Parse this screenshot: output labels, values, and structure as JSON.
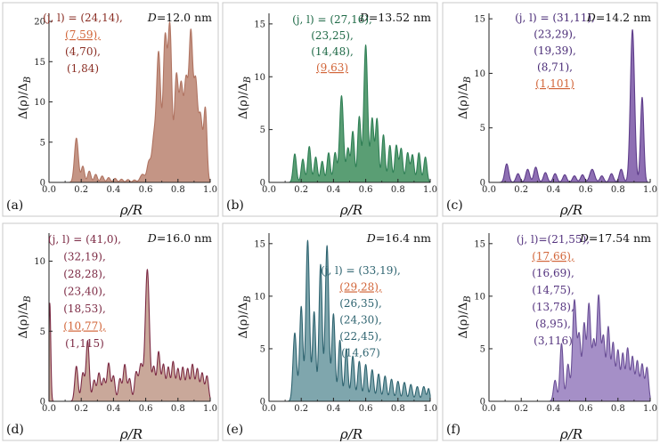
{
  "chart_data": [
    {
      "panel": "(a)",
      "type": "area",
      "D_label": "D",
      "D_value": "=12.0 nm",
      "color": "#b07462",
      "fill": "#c49585",
      "underline_color": "#d2663a",
      "ylabel": "Δ(ρ)/Δ_B",
      "xlabel": "ρ/R",
      "xlim": [
        0,
        1
      ],
      "ylim": [
        0,
        21
      ],
      "xticks": [
        "0.0",
        "0.2",
        "0.4",
        "0.6",
        "0.8",
        "1.0"
      ],
      "yticks": [
        "0",
        "5",
        "10",
        "15",
        "20"
      ],
      "ytick_values": [
        0,
        5,
        10,
        15,
        20
      ],
      "legend_lines": [
        "(j, l) = (24,14),",
        "(7,59),",
        "(4,70),",
        "(1,84)"
      ],
      "underlined_line": 1,
      "legend_color": "#8a2e24",
      "peaks": [
        [
          0.17,
          5.5,
          0.012
        ],
        [
          0.21,
          2.0,
          0.01
        ],
        [
          0.25,
          1.4,
          0.01
        ],
        [
          0.29,
          1.0,
          0.01
        ],
        [
          0.33,
          0.8,
          0.01
        ],
        [
          0.37,
          0.6,
          0.01
        ],
        [
          0.41,
          0.5,
          0.01
        ],
        [
          0.45,
          0.4,
          0.01
        ],
        [
          0.49,
          0.35,
          0.01
        ],
        [
          0.53,
          0.3,
          0.01
        ],
        [
          0.58,
          1.0,
          0.015
        ],
        [
          0.62,
          2.5,
          0.012
        ],
        [
          0.65,
          5.0,
          0.012
        ],
        [
          0.68,
          16.0,
          0.013
        ],
        [
          0.72,
          17.5,
          0.012
        ],
        [
          0.75,
          19.0,
          0.012
        ],
        [
          0.79,
          13.0,
          0.012
        ],
        [
          0.82,
          11.5,
          0.012
        ],
        [
          0.85,
          12.0,
          0.012
        ],
        [
          0.88,
          18.0,
          0.012
        ],
        [
          0.91,
          12.0,
          0.012
        ],
        [
          0.94,
          8.0,
          0.012
        ],
        [
          0.97,
          9.0,
          0.01
        ]
      ]
    },
    {
      "panel": "(b)",
      "type": "area",
      "D_label": "D",
      "D_value": "=13.52 nm",
      "color": "#2f7f55",
      "fill": "#5a9e74",
      "underline_color": "#d2663a",
      "ylabel": "Δ(ρ)/Δ_B",
      "xlabel": "ρ/R",
      "xlim": [
        0,
        1
      ],
      "ylim": [
        0,
        16
      ],
      "xticks": [
        "0.0",
        "0.2",
        "0.4",
        "0.6",
        "0.8",
        "1.0"
      ],
      "yticks": [
        "0",
        "5",
        "10",
        "15"
      ],
      "ytick_values": [
        0,
        5,
        10,
        15
      ],
      "legend_lines": [
        "(j, l) = (27,16),",
        "(23,25),",
        "(14,48),",
        "(9,63)"
      ],
      "underlined_line": 3,
      "legend_color": "#1f6a47",
      "peaks": [
        [
          0.16,
          2.7,
          0.01
        ],
        [
          0.21,
          2.2,
          0.01
        ],
        [
          0.25,
          3.4,
          0.01
        ],
        [
          0.29,
          2.4,
          0.01
        ],
        [
          0.33,
          2.0,
          0.01
        ],
        [
          0.37,
          2.8,
          0.01
        ],
        [
          0.41,
          2.8,
          0.01
        ],
        [
          0.45,
          8.2,
          0.012
        ],
        [
          0.49,
          3.2,
          0.01
        ],
        [
          0.52,
          4.8,
          0.01
        ],
        [
          0.56,
          6.2,
          0.01
        ],
        [
          0.6,
          13.0,
          0.012
        ],
        [
          0.64,
          6.0,
          0.01
        ],
        [
          0.67,
          6.0,
          0.01
        ],
        [
          0.71,
          4.5,
          0.01
        ],
        [
          0.75,
          3.5,
          0.01
        ],
        [
          0.79,
          3.5,
          0.01
        ],
        [
          0.82,
          3.2,
          0.01
        ],
        [
          0.86,
          2.8,
          0.01
        ],
        [
          0.89,
          2.6,
          0.01
        ],
        [
          0.93,
          2.8,
          0.01
        ],
        [
          0.97,
          2.4,
          0.01
        ]
      ]
    },
    {
      "panel": "(c)",
      "type": "area",
      "D_label": "D",
      "D_value": "=14.2 nm",
      "color": "#5e3d8a",
      "fill": "#8e6fb3",
      "underline_color": "#d2663a",
      "ylabel": "Δ(ρ)/Δ_B",
      "xlabel": "ρ/R",
      "xlim": [
        0,
        1
      ],
      "ylim": [
        0,
        15.5
      ],
      "xticks": [
        "0.0",
        "0.2",
        "0.4",
        "0.6",
        "0.8",
        "1.0"
      ],
      "yticks": [
        "0",
        "5",
        "10",
        "15"
      ],
      "ytick_values": [
        0,
        5,
        10,
        15
      ],
      "legend_lines": [
        "(j, l) = (31,11),",
        "(23,29),",
        "(19,39),",
        "(8,71),",
        "(1,101)"
      ],
      "underlined_line": 4,
      "legend_color": "#4a2c77",
      "peaks": [
        [
          0.11,
          1.7,
          0.012
        ],
        [
          0.18,
          0.8,
          0.012
        ],
        [
          0.24,
          1.2,
          0.012
        ],
        [
          0.29,
          1.4,
          0.012
        ],
        [
          0.35,
          0.9,
          0.012
        ],
        [
          0.41,
          0.8,
          0.012
        ],
        [
          0.47,
          0.7,
          0.012
        ],
        [
          0.53,
          0.6,
          0.012
        ],
        [
          0.58,
          0.7,
          0.012
        ],
        [
          0.64,
          1.2,
          0.015
        ],
        [
          0.7,
          0.6,
          0.012
        ],
        [
          0.76,
          0.8,
          0.012
        ],
        [
          0.82,
          1.2,
          0.012
        ],
        [
          0.89,
          14.0,
          0.013
        ],
        [
          0.95,
          7.8,
          0.01
        ]
      ]
    },
    {
      "panel": "(d)",
      "type": "area",
      "D_label": "D",
      "D_value": "=16.0 nm",
      "color": "#7c2a44",
      "fill": "#c9a89a",
      "underline_color": "#d2663a",
      "ylabel": "Δ(ρ)/Δ_B",
      "xlabel": "ρ/R",
      "xlim": [
        0,
        1
      ],
      "ylim": [
        0,
        12
      ],
      "xticks": [
        "0.0",
        "0.2",
        "0.4",
        "0.6",
        "0.8",
        "1.0"
      ],
      "yticks": [
        "0",
        "5",
        "10"
      ],
      "ytick_values": [
        0,
        5,
        10
      ],
      "legend_lines": [
        "(j, l) = (41,0),",
        "(32,19),",
        "(28,28),",
        "(23,40),",
        "(18,53),",
        "(10,77),",
        "(1,115)"
      ],
      "underlined_line": 5,
      "legend_color": "#7c2a44",
      "peaks": [
        [
          0.005,
          7.0,
          0.006
        ],
        [
          0.17,
          2.5,
          0.01
        ],
        [
          0.21,
          2.0,
          0.01
        ],
        [
          0.24,
          4.3,
          0.01
        ],
        [
          0.28,
          1.5,
          0.01
        ],
        [
          0.31,
          2.0,
          0.01
        ],
        [
          0.34,
          1.6,
          0.01
        ],
        [
          0.37,
          2.7,
          0.01
        ],
        [
          0.4,
          1.8,
          0.01
        ],
        [
          0.44,
          1.6,
          0.01
        ],
        [
          0.47,
          2.6,
          0.01
        ],
        [
          0.5,
          1.6,
          0.01
        ],
        [
          0.54,
          2.0,
          0.01
        ],
        [
          0.57,
          2.6,
          0.012
        ],
        [
          0.61,
          9.4,
          0.013
        ],
        [
          0.65,
          2.4,
          0.01
        ],
        [
          0.68,
          3.5,
          0.01
        ],
        [
          0.71,
          2.6,
          0.01
        ],
        [
          0.74,
          2.4,
          0.01
        ],
        [
          0.77,
          2.8,
          0.01
        ],
        [
          0.8,
          2.3,
          0.01
        ],
        [
          0.83,
          2.4,
          0.01
        ],
        [
          0.86,
          2.3,
          0.01
        ],
        [
          0.89,
          2.6,
          0.01
        ],
        [
          0.92,
          2.3,
          0.01
        ],
        [
          0.95,
          2.0,
          0.01
        ],
        [
          0.98,
          1.8,
          0.01
        ]
      ]
    },
    {
      "panel": "(e)",
      "type": "area",
      "D_label": "D",
      "D_value": "=16.4 nm",
      "color": "#2f6470",
      "fill": "#7fa6ad",
      "underline_color": "#d2663a",
      "ylabel": "Δ(ρ)/Δ_B",
      "xlabel": "ρ/R",
      "xlim": [
        0,
        1
      ],
      "ylim": [
        0,
        16
      ],
      "xticks": [
        "0.0",
        "0.2",
        "0.4",
        "0.6",
        "0.8",
        "1.0"
      ],
      "yticks": [
        "0",
        "5",
        "10",
        "15"
      ],
      "ytick_values": [
        0,
        5,
        10,
        15
      ],
      "legend_lines": [
        "(j, l) = (33,19),",
        "(29,28),",
        "(26,35),",
        "(24,30),",
        "(22,45),",
        "(14,67)"
      ],
      "underlined_line": 1,
      "legend_color": "#2f6470",
      "peaks": [
        [
          0.16,
          6.5,
          0.011
        ],
        [
          0.2,
          9.0,
          0.01
        ],
        [
          0.24,
          15.3,
          0.011
        ],
        [
          0.28,
          8.5,
          0.01
        ],
        [
          0.32,
          13.0,
          0.01
        ],
        [
          0.36,
          14.8,
          0.011
        ],
        [
          0.4,
          8.3,
          0.01
        ],
        [
          0.44,
          5.8,
          0.01
        ],
        [
          0.48,
          5.0,
          0.01
        ],
        [
          0.52,
          4.3,
          0.01
        ],
        [
          0.56,
          3.8,
          0.01
        ],
        [
          0.6,
          3.5,
          0.01
        ],
        [
          0.64,
          3.0,
          0.01
        ],
        [
          0.68,
          2.6,
          0.01
        ],
        [
          0.72,
          2.4,
          0.01
        ],
        [
          0.76,
          2.1,
          0.01
        ],
        [
          0.8,
          1.9,
          0.01
        ],
        [
          0.84,
          1.8,
          0.01
        ],
        [
          0.88,
          1.6,
          0.01
        ],
        [
          0.92,
          1.4,
          0.01
        ],
        [
          0.96,
          1.4,
          0.01
        ],
        [
          0.99,
          1.2,
          0.008
        ]
      ]
    },
    {
      "panel": "(f)",
      "type": "area",
      "D_label": "D",
      "D_value": "=17.54 nm",
      "color": "#6a4f96",
      "fill": "#a58fc7",
      "underline_color": "#d2663a",
      "ylabel": "Δ(ρ)/Δ_B",
      "xlabel": "ρ/R",
      "xlim": [
        0,
        1
      ],
      "ylim": [
        0,
        16
      ],
      "xticks": [
        "0.0",
        "0.2",
        "0.4",
        "0.6",
        "0.8",
        "1.0"
      ],
      "yticks": [
        "0",
        "5",
        "10",
        "15"
      ],
      "ytick_values": [
        0,
        5,
        10,
        15
      ],
      "legend_lines": [
        "(j, l)=(21,55),",
        "(17,66),",
        "(16,69),",
        "(14,75),",
        "(13,78),",
        "(8,95),",
        "(3,116)"
      ],
      "underlined_line": 1,
      "legend_color": "#55347f",
      "peaks": [
        [
          0.41,
          2.0,
          0.01
        ],
        [
          0.45,
          5.5,
          0.01
        ],
        [
          0.49,
          3.5,
          0.01
        ],
        [
          0.53,
          9.6,
          0.012
        ],
        [
          0.56,
          6.0,
          0.01
        ],
        [
          0.59,
          7.2,
          0.01
        ],
        [
          0.62,
          9.2,
          0.011
        ],
        [
          0.65,
          5.5,
          0.01
        ],
        [
          0.68,
          10.0,
          0.011
        ],
        [
          0.71,
          6.0,
          0.01
        ],
        [
          0.74,
          7.0,
          0.01
        ],
        [
          0.77,
          5.5,
          0.01
        ],
        [
          0.8,
          4.8,
          0.01
        ],
        [
          0.83,
          4.5,
          0.01
        ],
        [
          0.86,
          5.0,
          0.01
        ],
        [
          0.89,
          4.2,
          0.01
        ],
        [
          0.92,
          3.8,
          0.01
        ],
        [
          0.95,
          3.5,
          0.01
        ],
        [
          0.98,
          3.2,
          0.01
        ]
      ]
    }
  ]
}
